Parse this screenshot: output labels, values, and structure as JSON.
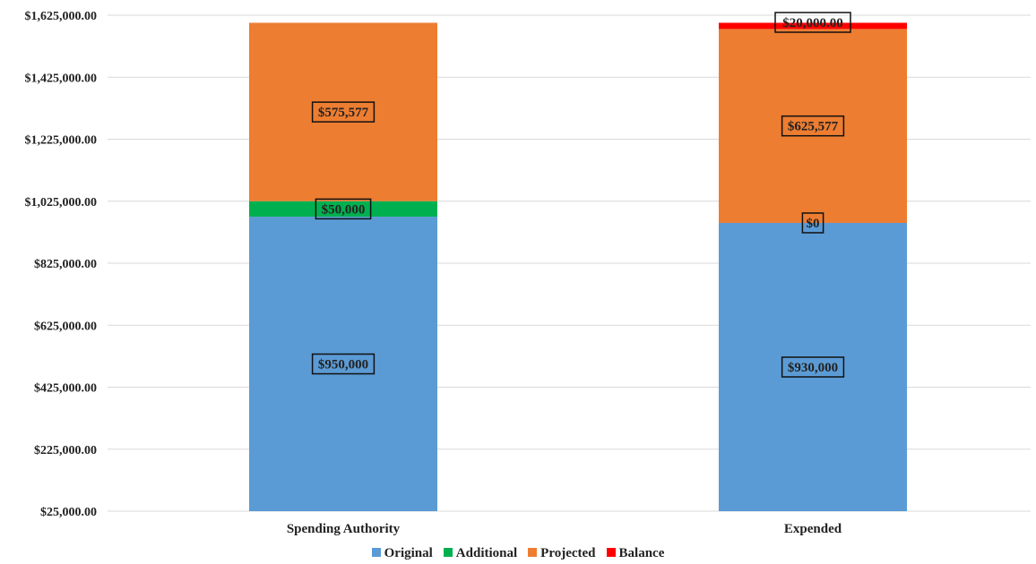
{
  "chart_data": {
    "type": "bar",
    "stacked": true,
    "categories": [
      "Spending Authority",
      "Expended"
    ],
    "series": [
      {
        "name": "Original",
        "color": "#5b9bd5",
        "values": [
          950000,
          930000
        ],
        "labels": [
          "$950,000",
          "$930,000"
        ]
      },
      {
        "name": "Additional",
        "color": "#00b050",
        "values": [
          50000,
          0
        ],
        "labels": [
          "$50,000",
          "$0"
        ]
      },
      {
        "name": "Projected",
        "color": "#ed7d31",
        "values": [
          575577,
          625577
        ],
        "labels": [
          "$575,577",
          "$625,577"
        ]
      },
      {
        "name": "Balance",
        "color": "#ff0000",
        "values": [
          0,
          20000
        ],
        "labels": [
          "",
          "$20,000.00"
        ]
      }
    ],
    "yticks": [
      "$25,000.00",
      "$225,000.00",
      "$425,000.00",
      "$625,000.00",
      "$825,000.00",
      "$1,025,000.00",
      "$1,225,000.00",
      "$1,425,000.00",
      "$1,625,000.00"
    ],
    "ylim": [
      25000,
      1625000
    ],
    "grid": true,
    "legend_position": "bottom",
    "title": "",
    "xlabel": "",
    "ylabel": ""
  }
}
